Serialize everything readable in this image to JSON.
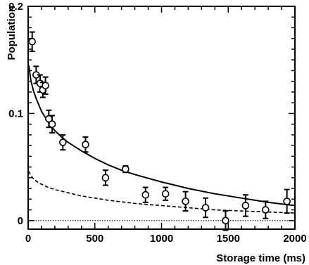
{
  "chart_data": {
    "type": "scatter",
    "title": "",
    "xlabel": "Storage time (ms)",
    "ylabel": "Population",
    "xlim": [
      0,
      2000
    ],
    "ylim": [
      -0.008,
      0.2
    ],
    "xticks": [
      0,
      500,
      1000,
      1500,
      2000
    ],
    "yticks": [
      0,
      0.1,
      0.2
    ],
    "xtick_labels": [
      "0",
      "500",
      "1000",
      "1500",
      "2000"
    ],
    "ytick_labels": [
      "0",
      "0.1",
      "0.2"
    ],
    "grid": false,
    "legend": "none",
    "series": [
      {
        "kind": "points_with_errorbars",
        "x": [
          30,
          60,
          90,
          110,
          130,
          155,
          180,
          260,
          430,
          580,
          730,
          880,
          1030,
          1180,
          1330,
          1480,
          1630,
          1780,
          1940
        ],
        "y": [
          0.167,
          0.136,
          0.128,
          0.122,
          0.126,
          0.095,
          0.09,
          0.073,
          0.071,
          0.04,
          0.048,
          0.024,
          0.025,
          0.018,
          0.012,
          0.0,
          0.014,
          0.01,
          0.018
        ],
        "yerr": [
          0.009,
          0.008,
          0.008,
          0.007,
          0.008,
          0.008,
          0.008,
          0.007,
          0.007,
          0.007,
          0.003,
          0.007,
          0.006,
          0.009,
          0.009,
          0.009,
          0.01,
          0.008,
          0.011
        ]
      },
      {
        "kind": "line",
        "style": "solid",
        "x": [
          5,
          20,
          40,
          60,
          80,
          100,
          130,
          160,
          200,
          250,
          300,
          400,
          500,
          600,
          700,
          800,
          1000,
          1200,
          1400,
          1600,
          1800,
          2000
        ],
        "y": [
          0.145,
          0.131,
          0.121,
          0.114,
          0.108,
          0.102,
          0.096,
          0.09,
          0.084,
          0.078,
          0.073,
          0.065,
          0.058,
          0.052,
          0.047,
          0.043,
          0.036,
          0.03,
          0.025,
          0.021,
          0.017,
          0.014
        ]
      },
      {
        "kind": "line",
        "style": "dashed",
        "x": [
          5,
          20,
          40,
          60,
          80,
          100,
          150,
          200,
          300,
          400,
          500,
          600,
          800,
          1000,
          1200,
          1400,
          1600,
          1800,
          2000
        ],
        "y": [
          0.046,
          0.042,
          0.039,
          0.037,
          0.035,
          0.034,
          0.031,
          0.029,
          0.026,
          0.023,
          0.021,
          0.019,
          0.016,
          0.014,
          0.012,
          0.01,
          0.009,
          0.008,
          0.007
        ]
      },
      {
        "kind": "line",
        "style": "dotted",
        "x": [
          0,
          2000
        ],
        "y": [
          0,
          0
        ]
      }
    ]
  },
  "colors": {
    "ink": "#000000",
    "background": "#ffffff"
  }
}
